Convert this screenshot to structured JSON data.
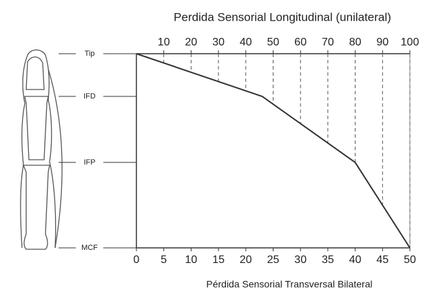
{
  "chart_data": {
    "type": "line",
    "title": "Perdida Sensorial Longitudinal (unilateral)",
    "x_label": "Pérdida Sensorial Transversal Bilateral",
    "x": [
      0,
      23,
      40,
      50
    ],
    "series": [
      {
        "color": "#333333",
        "values": [
          100,
          78,
          44,
          0
        ]
      }
    ],
    "xlim": [
      0,
      50
    ],
    "xticks": [
      0,
      5,
      10,
      15,
      20,
      25,
      30,
      35,
      40,
      45,
      50
    ],
    "x2lim": [
      0,
      100
    ],
    "x2ticks": [
      10,
      20,
      30,
      40,
      50,
      60,
      70,
      80,
      90,
      100
    ],
    "ylim": [
      0,
      100
    ],
    "yticks": [
      {
        "value": 100,
        "label": "Tip"
      },
      {
        "value": 78,
        "label": "IFD"
      },
      {
        "value": 44,
        "label": "IFP"
      },
      {
        "value": 0,
        "label": "MCF"
      }
    ]
  }
}
